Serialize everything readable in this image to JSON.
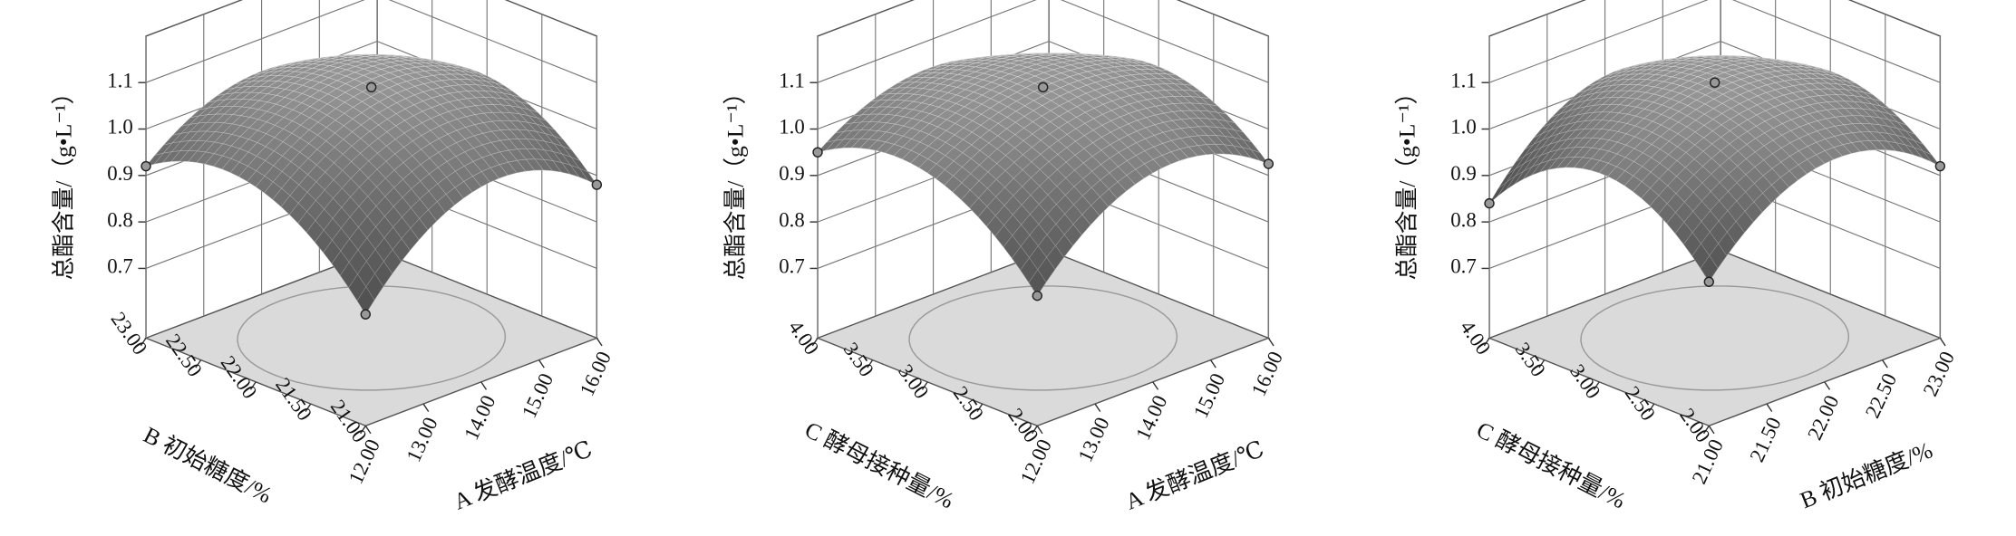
{
  "chart_data": [
    {
      "type": "surface3d",
      "z_label": "总酯含量/（g•L⁻¹）",
      "x_label": "A 发酵温度/℃",
      "y_label": "B 初始糖度/%",
      "xlim": [
        12,
        16
      ],
      "xticks": [
        {
          "value": 12,
          "label": "12.00"
        },
        {
          "value": 13,
          "label": "13.00"
        },
        {
          "value": 14,
          "label": "14.00"
        },
        {
          "value": 15,
          "label": "15.00"
        },
        {
          "value": 16,
          "label": "16.00"
        }
      ],
      "ylim": [
        21,
        23
      ],
      "yticks": [
        {
          "value": 21,
          "label": "21.00"
        },
        {
          "value": 21.5,
          "label": "21.50"
        },
        {
          "value": 22,
          "label": "22.00"
        },
        {
          "value": 22.5,
          "label": "22.50"
        },
        {
          "value": 23,
          "label": "23.00"
        }
      ],
      "zlim": [
        0.55,
        1.2
      ],
      "zticks": [
        0.7,
        0.8,
        0.9,
        {
          "value": 1.0,
          "label": "1.0"
        },
        1.1
      ],
      "surface": [
        [
          0.79,
          0.97,
          0.92
        ],
        [
          0.97,
          1.09,
          1.03
        ],
        [
          0.88,
          1.02,
          0.92
        ]
      ]
    },
    {
      "type": "surface3d",
      "z_label": "总酯含量/（g•L⁻¹）",
      "x_label": "A 发酵温度/℃",
      "y_label": "C 酵母接种量/%",
      "xlim": [
        12,
        16
      ],
      "xticks": [
        {
          "value": 12,
          "label": "12.00"
        },
        {
          "value": 13,
          "label": "13.00"
        },
        {
          "value": 14,
          "label": "14.00"
        },
        {
          "value": 15,
          "label": "15.00"
        },
        {
          "value": 16,
          "label": "16.00"
        }
      ],
      "ylim": [
        2,
        4
      ],
      "yticks": [
        {
          "value": 2,
          "label": "2.00"
        },
        {
          "value": 2.5,
          "label": "2.50"
        },
        {
          "value": 3,
          "label": "3.00"
        },
        {
          "value": 3.5,
          "label": "3.50"
        },
        {
          "value": 4,
          "label": "4.00"
        }
      ],
      "zlim": [
        0.55,
        1.2
      ],
      "zticks": [
        0.7,
        0.8,
        0.9,
        {
          "value": 1.0,
          "label": "1.0"
        },
        1.1
      ],
      "surface": [
        [
          0.83,
          1.0,
          0.95
        ],
        [
          1.0,
          1.09,
          1.04
        ],
        [
          0.925,
          1.04,
          0.93
        ]
      ]
    },
    {
      "type": "surface3d",
      "z_label": "总酯含量/（g•L⁻¹）",
      "x_label": "B 初始糖度/%",
      "y_label": "C 酵母接种量/%",
      "xlim": [
        21,
        23
      ],
      "xticks": [
        {
          "value": 21,
          "label": "21.00"
        },
        {
          "value": 21.5,
          "label": "21.50"
        },
        {
          "value": 22,
          "label": "22.00"
        },
        {
          "value": 22.5,
          "label": "22.50"
        },
        {
          "value": 23,
          "label": "23.00"
        }
      ],
      "ylim": [
        2,
        4
      ],
      "yticks": [
        {
          "value": 2,
          "label": "2.00"
        },
        {
          "value": 2.5,
          "label": "2.50"
        },
        {
          "value": 3,
          "label": "3.00"
        },
        {
          "value": 3.5,
          "label": "3.50"
        },
        {
          "value": 4,
          "label": "4.00"
        }
      ],
      "zlim": [
        0.55,
        1.2
      ],
      "zticks": [
        0.7,
        0.8,
        0.9,
        {
          "value": 1.0,
          "label": "1.0"
        },
        1.1
      ],
      "surface": [
        [
          0.86,
          1.0,
          0.84
        ],
        [
          1.02,
          1.1,
          1.02
        ],
        [
          0.92,
          1.03,
          0.9
        ]
      ]
    }
  ]
}
